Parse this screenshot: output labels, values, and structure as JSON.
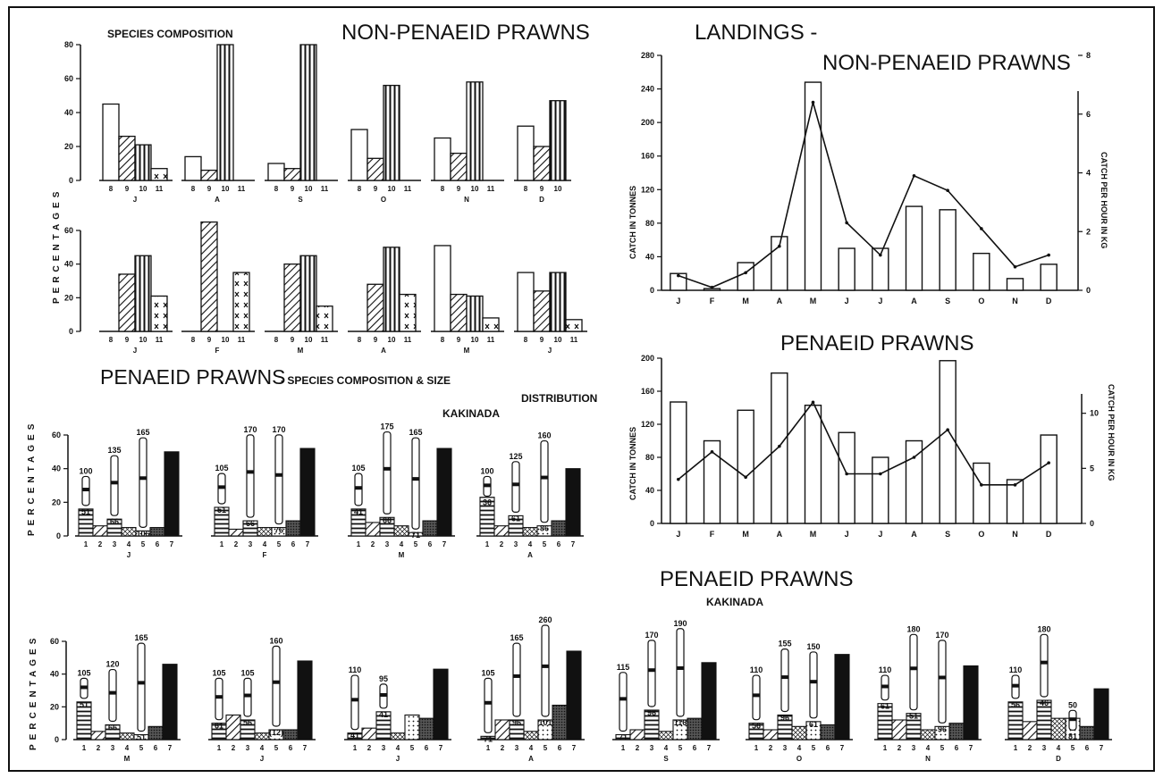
{
  "titles": {
    "species_composition": "SPECIES COMPOSITION",
    "non_penaeid_prawns": "NON-PENAEID PRAWNS",
    "landings": "LANDINGS -",
    "landings_non_penaeid": "NON-PENAEID PRAWNS",
    "penaeid_species_size": "PENAEID PRAWNS",
    "penaeid_species_size_sub": "- SPECIES COMPOSITION & SIZE",
    "distribution": "DISTRIBUTION",
    "kakinada_top": "KAKINADA",
    "penaeid_landings": "PENAEID PRAWNS",
    "penaeid_bottom": "PENAEID PRAWNS",
    "kakinada_bottom": "KAKINADA",
    "percentages_label": "PERCENTAGES",
    "catch_in_tonnes": "CATCH IN TONNES",
    "catch_per_hour": "CATCH PER HOUR IN KG"
  },
  "colors": {
    "ink": "#111111",
    "paper": "#ffffff"
  },
  "chart_data": [
    {
      "id": "np_species_row1",
      "type": "bar",
      "ylabel": "PERCENTAGES",
      "ylim": [
        0,
        80
      ],
      "yticks": [
        0,
        20,
        40,
        60,
        80
      ],
      "months": [
        "J",
        "A",
        "S",
        "O",
        "N",
        "D"
      ],
      "groups": [
        {
          "month": "J",
          "categories": [
            "8",
            "9",
            "10",
            "11"
          ],
          "values": [
            45,
            26,
            21,
            7
          ]
        },
        {
          "month": "A",
          "categories": [
            "8",
            "9",
            "10",
            "11"
          ],
          "values": [
            14,
            6,
            80,
            0
          ]
        },
        {
          "month": "S",
          "categories": [
            "8",
            "9",
            "10",
            "11"
          ],
          "values": [
            10,
            7,
            80,
            0
          ]
        },
        {
          "month": "O",
          "categories": [
            "8",
            "9",
            "10",
            "11"
          ],
          "values": [
            30,
            13,
            56,
            0
          ]
        },
        {
          "month": "N",
          "categories": [
            "8",
            "9",
            "10",
            "11"
          ],
          "values": [
            25,
            16,
            58,
            0
          ]
        },
        {
          "month": "D",
          "categories": [
            "8",
            "9",
            "10"
          ],
          "values": [
            32,
            20,
            47
          ]
        }
      ]
    },
    {
      "id": "np_species_row2",
      "type": "bar",
      "ylim": [
        0,
        60
      ],
      "yticks": [
        0,
        20,
        40,
        60
      ],
      "months": [
        "J",
        "F",
        "M",
        "A",
        "M",
        "J"
      ],
      "groups": [
        {
          "month": "J",
          "categories": [
            "8",
            "9",
            "10",
            "11"
          ],
          "values": [
            0,
            34,
            45,
            21
          ]
        },
        {
          "month": "F",
          "categories": [
            "8",
            "9",
            "10",
            "11"
          ],
          "values": [
            0,
            65,
            0,
            35
          ]
        },
        {
          "month": "M",
          "categories": [
            "8",
            "9",
            "10",
            "11"
          ],
          "values": [
            0,
            40,
            45,
            15
          ]
        },
        {
          "month": "A",
          "categories": [
            "8",
            "9",
            "10",
            "11"
          ],
          "values": [
            0,
            28,
            50,
            22
          ]
        },
        {
          "month": "M",
          "categories": [
            "8",
            "9",
            "10",
            "11"
          ],
          "values": [
            51,
            22,
            21,
            8
          ]
        },
        {
          "month": "J",
          "categories": [
            "8",
            "9",
            "10",
            "11"
          ],
          "values": [
            35,
            24,
            35,
            7
          ]
        }
      ]
    },
    {
      "id": "landings_non_penaeid",
      "type": "bar",
      "categories": [
        "J",
        "F",
        "M",
        "A",
        "M",
        "J",
        "J",
        "A",
        "S",
        "O",
        "N",
        "D"
      ],
      "series": [
        {
          "name": "",
          "kind": "bar",
          "axis": "left",
          "values": [
            20,
            2,
            33,
            64,
            248,
            50,
            50,
            100,
            96,
            44,
            14,
            31
          ]
        },
        {
          "name": "",
          "kind": "line",
          "axis": "right",
          "values": [
            0.5,
            0.1,
            0.6,
            1.5,
            6.4,
            2.3,
            1.2,
            3.9,
            3.4,
            2.1,
            0.8,
            1.2
          ]
        }
      ],
      "ylabel": "CATCH IN TONNES",
      "ylabel_right": "CATCH PER HOUR IN KG",
      "ylim": [
        0,
        280
      ],
      "yticks": [
        0,
        40,
        80,
        120,
        160,
        200,
        240,
        280
      ],
      "ylim_right": [
        0,
        8
      ],
      "yticks_right": [
        0,
        2,
        4,
        6,
        8
      ]
    },
    {
      "id": "landings_penaeid",
      "type": "bar",
      "categories": [
        "J",
        "F",
        "M",
        "A",
        "M",
        "J",
        "J",
        "A",
        "S",
        "O",
        "N",
        "D"
      ],
      "series": [
        {
          "name": "",
          "kind": "bar",
          "axis": "left",
          "values": [
            147,
            100,
            137,
            182,
            143,
            110,
            80,
            100,
            197,
            73,
            53,
            107
          ]
        },
        {
          "name": "",
          "kind": "line",
          "axis": "right",
          "values": [
            4,
            6.5,
            4.2,
            7,
            11,
            4.5,
            4.5,
            6,
            8.5,
            3.5,
            3.5,
            5.5
          ]
        }
      ],
      "ylabel": "CATCH IN TONNES",
      "ylabel_right": "CATCH PER HOUR IN KG",
      "ylim": [
        0,
        200
      ],
      "yticks": [
        0,
        40,
        80,
        120,
        160,
        200
      ],
      "ylim_right": [
        0,
        15
      ],
      "yticks_right": [
        0,
        5,
        10
      ]
    },
    {
      "id": "penaeid_species_size_top",
      "type": "bar",
      "ylabel": "PERCENTAGES",
      "ylim": [
        0,
        60
      ],
      "yticks": [
        0,
        20,
        40,
        60
      ],
      "groups": [
        {
          "month": "J",
          "categories": [
            "1",
            "2",
            "3",
            "4",
            "5",
            "6",
            "7"
          ],
          "values": [
            16,
            6,
            10,
            5,
            3,
            5,
            50
          ],
          "sizes": [
            {
              "cat": "1",
              "max": "100",
              "min": "51"
            },
            {
              "cat": "3",
              "max": "135",
              "min": "66"
            },
            {
              "cat": "5",
              "max": "165",
              "min": "106"
            }
          ]
        },
        {
          "month": "F",
          "categories": [
            "1",
            "2",
            "3",
            "4",
            "5",
            "6",
            "7"
          ],
          "values": [
            17,
            4,
            9,
            5,
            5,
            9,
            52
          ],
          "sizes": [
            {
              "cat": "1",
              "max": "105",
              "min": "51"
            },
            {
              "cat": "3",
              "max": "170",
              "min": "66"
            },
            {
              "cat": "5",
              "max": "170",
              "min": "76"
            }
          ]
        },
        {
          "month": "M",
          "categories": [
            "1",
            "2",
            "3",
            "4",
            "5",
            "6",
            "7"
          ],
          "values": [
            16,
            8,
            11,
            6,
            2,
            9,
            52
          ],
          "sizes": [
            {
              "cat": "1",
              "max": "105",
              "min": "41"
            },
            {
              "cat": "3",
              "max": "175",
              "min": "66"
            },
            {
              "cat": "5",
              "max": "165",
              "min": "71"
            }
          ]
        },
        {
          "month": "A",
          "categories": [
            "1",
            "2",
            "3",
            "4",
            "5",
            "6",
            "7"
          ],
          "values": [
            23,
            6,
            12,
            5,
            6,
            9,
            40
          ],
          "sizes": [
            {
              "cat": "1",
              "max": "100",
              "min": "36"
            },
            {
              "cat": "3",
              "max": "125",
              "min": "61"
            },
            {
              "cat": "5",
              "max": "160",
              "min": "86"
            }
          ]
        }
      ]
    },
    {
      "id": "penaeid_species_size_bottom",
      "type": "bar",
      "ylabel": "PERCENTAGES",
      "ylim": [
        0,
        60
      ],
      "yticks": [
        0,
        20,
        40,
        60
      ],
      "groups": [
        {
          "month": "M",
          "categories": [
            "1",
            "2",
            "3",
            "4",
            "5",
            "6",
            "7"
          ],
          "values": [
            23,
            5,
            9,
            4,
            3,
            8,
            46
          ],
          "sizes": [
            {
              "cat": "1",
              "max": "105",
              "min": "51"
            },
            {
              "cat": "3",
              "max": "120",
              "min": "66"
            },
            {
              "cat": "5",
              "max": "165",
              "min": "51"
            }
          ]
        },
        {
          "month": "J",
          "categories": [
            "1",
            "2",
            "3",
            "4",
            "5",
            "6",
            "7"
          ],
          "values": [
            10,
            15,
            12,
            4,
            6,
            6,
            48
          ],
          "sizes": [
            {
              "cat": "1",
              "max": "105",
              "min": "61"
            },
            {
              "cat": "3",
              "max": "105",
              "min": "56"
            },
            {
              "cat": "5",
              "max": "160",
              "min": "(12)"
            }
          ]
        },
        {
          "month": "J",
          "categories": [
            "1",
            "2",
            "3",
            "4",
            "5",
            "6",
            "7"
          ],
          "values": [
            4,
            7,
            17,
            4,
            15,
            13,
            43
          ],
          "sizes": [
            {
              "cat": "1",
              "max": "110",
              "min": "41"
            },
            {
              "cat": "3",
              "max": "95",
              "min": "41"
            }
          ]
        },
        {
          "month": "A",
          "categories": [
            "1",
            "2",
            "3",
            "4",
            "5",
            "6",
            "7"
          ],
          "values": [
            2,
            12,
            12,
            5,
            12,
            21,
            54
          ],
          "sizes": [
            {
              "cat": "1",
              "max": "105",
              "min": "71"
            },
            {
              "cat": "3",
              "max": "165",
              "min": "96"
            },
            {
              "cat": "5",
              "max": "260",
              "min": "101"
            }
          ]
        },
        {
          "month": "S",
          "categories": [
            "1",
            "2",
            "3",
            "4",
            "5",
            "6",
            "7"
          ],
          "values": [
            3,
            6,
            18,
            5,
            12,
            13,
            47
          ],
          "sizes": [
            {
              "cat": "1",
              "max": "115",
              "min": "71"
            },
            {
              "cat": "3",
              "max": "170",
              "min": "96"
            },
            {
              "cat": "5",
              "max": "190",
              "min": "116"
            }
          ]
        },
        {
          "month": "O",
          "categories": [
            "1",
            "2",
            "3",
            "4",
            "5",
            "6",
            "7"
          ],
          "values": [
            10,
            6,
            15,
            8,
            11,
            9,
            52
          ],
          "sizes": [
            {
              "cat": "1",
              "max": "110",
              "min": "56"
            },
            {
              "cat": "3",
              "max": "155",
              "min": "96"
            },
            {
              "cat": "5",
              "max": "150",
              "min": "61"
            }
          ]
        },
        {
          "month": "N",
          "categories": [
            "1",
            "2",
            "3",
            "4",
            "5",
            "6",
            "7"
          ],
          "values": [
            22,
            12,
            16,
            6,
            8,
            10,
            45
          ],
          "sizes": [
            {
              "cat": "1",
              "max": "110",
              "min": "61"
            },
            {
              "cat": "3",
              "max": "180",
              "min": "51"
            },
            {
              "cat": "5",
              "max": "170",
              "min": "96"
            }
          ]
        },
        {
          "month": "D",
          "categories": [
            "1",
            "2",
            "3",
            "4",
            "5",
            "6",
            "7"
          ],
          "values": [
            23,
            11,
            24,
            13,
            13,
            8,
            31
          ],
          "sizes": [
            {
              "cat": "1",
              "max": "110",
              "min": "56"
            },
            {
              "cat": "3",
              "max": "180",
              "min": "46"
            },
            {
              "cat": "5",
              "max": "50",
              "min": "81"
            }
          ]
        }
      ]
    }
  ]
}
